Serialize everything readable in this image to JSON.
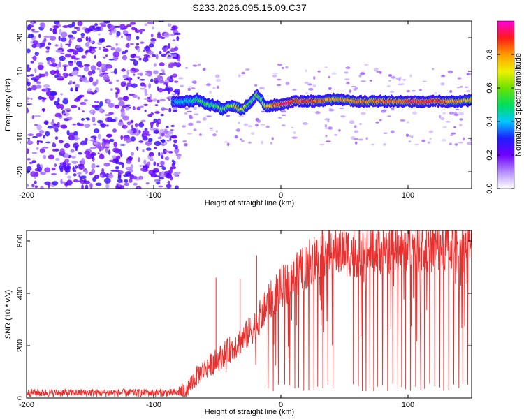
{
  "title": "S233.2026.095.15.09.C37",
  "colors": {
    "snr_line": "#e8312f",
    "axis": "#000000",
    "background": "#ffffff"
  },
  "chart_data": [
    {
      "type": "heatmap",
      "panel": "spectrogram",
      "xlabel": "Height of straight line (km)",
      "ylabel": "Frequency (Hz)",
      "xlim": [
        -200,
        150
      ],
      "ylim": [
        -25,
        25
      ],
      "xticks": [
        -200,
        -100,
        0,
        100
      ],
      "yticks": [
        -20,
        -10,
        0,
        10,
        20
      ],
      "xtick_labels": [
        "-200",
        "-100",
        "0",
        "100"
      ],
      "ytick_labels": [
        "-20",
        "-10",
        "0",
        "10",
        "20"
      ],
      "noise_region_x": [
        -200,
        -80
      ],
      "ridge": {
        "description": "frequency of peak spectral amplitude vs height",
        "x": [
          -85,
          -75,
          -70,
          -66,
          -62,
          -58,
          -54,
          -50,
          -46,
          -42,
          -38,
          -34,
          -30,
          -26,
          -22,
          -19,
          -16,
          -12,
          -8,
          -4,
          0,
          5,
          10,
          20,
          30,
          40,
          50,
          60,
          70,
          80,
          90,
          100,
          110,
          120,
          130,
          140,
          150
        ],
        "y": [
          1,
          1,
          1,
          1.5,
          1,
          0,
          0,
          -0.5,
          -1.5,
          -0.5,
          0,
          -1,
          -1.5,
          0,
          1.5,
          3,
          2,
          -0.5,
          -0.5,
          0,
          0,
          0.5,
          1,
          1,
          1,
          1.5,
          1.5,
          1,
          1,
          1,
          1,
          1,
          1,
          1,
          1,
          1,
          1.5
        ],
        "amplitude": [
          0.35,
          0.4,
          0.45,
          0.5,
          0.5,
          0.55,
          0.5,
          0.55,
          0.6,
          0.55,
          0.6,
          0.75,
          0.7,
          0.6,
          0.55,
          0.6,
          0.55,
          0.7,
          0.8,
          0.85,
          0.9,
          0.95,
          0.9,
          0.9,
          0.85,
          0.8,
          0.8,
          0.85,
          0.8,
          0.85,
          0.85,
          0.9,
          0.9,
          0.9,
          0.85,
          0.8,
          0.75
        ]
      },
      "colorbar": {
        "label": "Normalized spectral amplitude",
        "range": [
          0,
          1
        ],
        "ticks": [
          0.0,
          0.2,
          0.4,
          0.6,
          0.8
        ],
        "tick_labels": [
          "0.0",
          "0.2",
          "0.4",
          "0.6",
          "0.8"
        ]
      }
    },
    {
      "type": "line",
      "panel": "snr",
      "xlabel": "Height of straight line (km)",
      "ylabel": "SNR (10 * v/v)",
      "xlim": [
        -200,
        150
      ],
      "ylim": [
        0,
        640
      ],
      "xticks": [
        -200,
        -100,
        0,
        100
      ],
      "yticks": [
        0,
        200,
        400,
        600
      ],
      "xtick_labels": [
        "-200",
        "-100",
        "0",
        "100"
      ],
      "ytick_labels": [
        "0",
        "200",
        "400",
        "600"
      ],
      "series": [
        {
          "name": "SNR",
          "x": [
            -200,
            -150,
            -100,
            -85,
            -75,
            -70,
            -65,
            -60,
            -55,
            -50,
            -45,
            -40,
            -35,
            -30,
            -25,
            -20,
            -15,
            -10,
            -5,
            0,
            5,
            10,
            15,
            20,
            25,
            30,
            35,
            40,
            45,
            50,
            55,
            60,
            70,
            80,
            90,
            100,
            110,
            120,
            130,
            140,
            150
          ],
          "y": [
            20,
            20,
            20,
            20,
            25,
            60,
            90,
            110,
            130,
            145,
            165,
            185,
            205,
            225,
            250,
            280,
            320,
            360,
            395,
            420,
            440,
            460,
            480,
            505,
            530,
            550,
            560,
            565,
            560,
            560,
            560,
            555,
            560,
            570,
            575,
            570,
            575,
            575,
            580,
            575,
            580
          ]
        }
      ],
      "spikes_up": [
        {
          "x": -51,
          "y": 460
        },
        {
          "x": -32,
          "y": 455
        },
        {
          "x": -19,
          "y": 545
        }
      ],
      "dropouts": [
        -10,
        -6,
        -2,
        3,
        7,
        11,
        14,
        18,
        22,
        26,
        29,
        33,
        37,
        41,
        57,
        61,
        64,
        67,
        70,
        73,
        76,
        80,
        84,
        88,
        92,
        95,
        98,
        102,
        106,
        110,
        113,
        117,
        121,
        125,
        128,
        132,
        136,
        140,
        143,
        147
      ],
      "noise_amplitude": 15
    }
  ]
}
